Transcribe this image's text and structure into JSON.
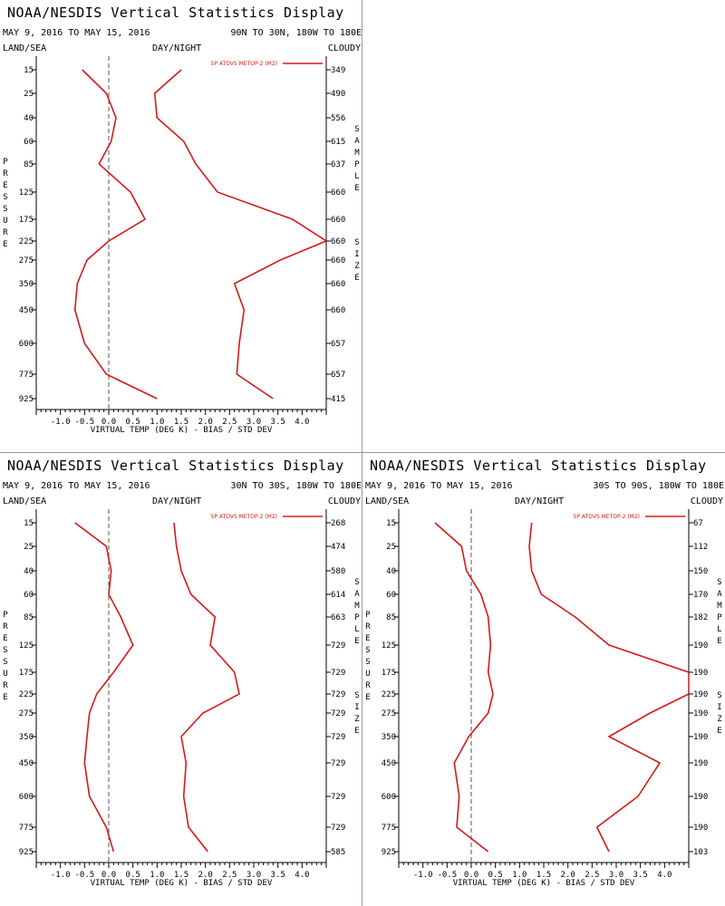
{
  "x_ticks": [
    "-1.0",
    "-0.5",
    "0.0",
    "0.5",
    "1.0",
    "1.5",
    "2.0",
    "2.5",
    "3.0",
    "3.5",
    "4.0"
  ],
  "chart_data": [
    {
      "type": "line",
      "title": "NOAA/NESDIS Vertical Statistics Display",
      "date_range": "MAY 9, 2016 TO MAY 15, 2016",
      "region": "90N TO 30N, 180W TO 180E",
      "land_sea": "LAND/SEA",
      "day_night": "DAY/NIGHT",
      "cloudy": "CLOUDY",
      "xlabel": "VIRTUAL TEMP (DEG K) - BIAS / STD DEV",
      "ylabel": "PRESSURE",
      "right_label": "SAMPLE SIZE",
      "legend": "SP ATOVS METOP-2 (M2)",
      "xlim": [
        -1.5,
        4.5
      ],
      "pressure_levels": [
        "15",
        "25",
        "40",
        "60",
        "85",
        "125",
        "175",
        "225",
        "275",
        "350",
        "450",
        "600",
        "775",
        "925"
      ],
      "sample_size": [
        "349",
        "490",
        "556",
        "615",
        "637",
        "660",
        "660",
        "660",
        "660",
        "660",
        "660",
        "657",
        "657",
        "415"
      ],
      "series": [
        {
          "values": [
            -0.55,
            -0.05,
            0.15,
            0.05,
            -0.2,
            0.45,
            0.75,
            0.0,
            -0.45,
            -0.65,
            -0.7,
            -0.5,
            -0.05,
            1.0
          ]
        },
        {
          "values": [
            1.5,
            0.95,
            1.0,
            1.55,
            1.8,
            2.25,
            3.8,
            4.5,
            3.55,
            2.6,
            2.8,
            2.7,
            2.65,
            3.4
          ]
        }
      ]
    },
    {
      "type": "line",
      "title": "NOAA/NESDIS Vertical Statistics Display",
      "date_range": "MAY 9, 2016 TO MAY 15, 2016",
      "region": "30N TO 30S, 180W TO 180E",
      "land_sea": "LAND/SEA",
      "day_night": "DAY/NIGHT",
      "cloudy": "CLOUDY",
      "xlabel": "VIRTUAL TEMP (DEG K) - BIAS / STD DEV",
      "ylabel": "PRESSURE",
      "right_label": "SAMPLE SIZE",
      "legend": "SP ATOVS METOP-2 (M2)",
      "xlim": [
        -1.5,
        4.5
      ],
      "pressure_levels": [
        "15",
        "25",
        "40",
        "60",
        "85",
        "125",
        "175",
        "225",
        "275",
        "350",
        "450",
        "600",
        "775",
        "925"
      ],
      "sample_size": [
        "268",
        "474",
        "580",
        "614",
        "663",
        "729",
        "729",
        "729",
        "729",
        "729",
        "729",
        "729",
        "729",
        "585"
      ],
      "series": [
        {
          "values": [
            -0.7,
            -0.05,
            0.05,
            0.0,
            0.25,
            0.5,
            0.1,
            -0.25,
            -0.4,
            -0.45,
            -0.5,
            -0.4,
            -0.05,
            0.1
          ]
        },
        {
          "values": [
            1.35,
            1.4,
            1.5,
            1.7,
            2.2,
            2.1,
            2.6,
            2.7,
            1.95,
            1.5,
            1.6,
            1.55,
            1.65,
            2.05
          ]
        }
      ]
    },
    {
      "type": "line",
      "title": "NOAA/NESDIS Vertical Statistics Display",
      "date_range": "MAY 9, 2016 TO MAY 15, 2016",
      "region": "30S TO 90S, 180W TO 180E",
      "land_sea": "LAND/SEA",
      "day_night": "DAY/NIGHT",
      "cloudy": "CLOUDY",
      "xlabel": "VIRTUAL TEMP (DEG K) - BIAS / STD DEV",
      "ylabel": "PRESSURE",
      "right_label": "SAMPLE SIZE",
      "legend": "SP ATOVS METOP-2 (M2)",
      "xlim": [
        -1.5,
        4.5
      ],
      "pressure_levels": [
        "15",
        "25",
        "40",
        "60",
        "85",
        "125",
        "175",
        "225",
        "275",
        "350",
        "450",
        "600",
        "775",
        "925"
      ],
      "sample_size": [
        "67",
        "112",
        "150",
        "170",
        "182",
        "190",
        "190",
        "190",
        "190",
        "190",
        "190",
        "190",
        "190",
        "103"
      ],
      "series": [
        {
          "values": [
            -0.75,
            -0.2,
            -0.1,
            0.2,
            0.35,
            0.4,
            0.35,
            0.45,
            0.35,
            -0.05,
            -0.35,
            -0.25,
            -0.3,
            0.35
          ]
        },
        {
          "values": [
            1.25,
            1.2,
            1.25,
            1.45,
            2.15,
            2.85,
            4.5,
            4.5,
            3.7,
            2.85,
            3.9,
            3.45,
            2.6,
            2.85
          ]
        }
      ]
    }
  ]
}
